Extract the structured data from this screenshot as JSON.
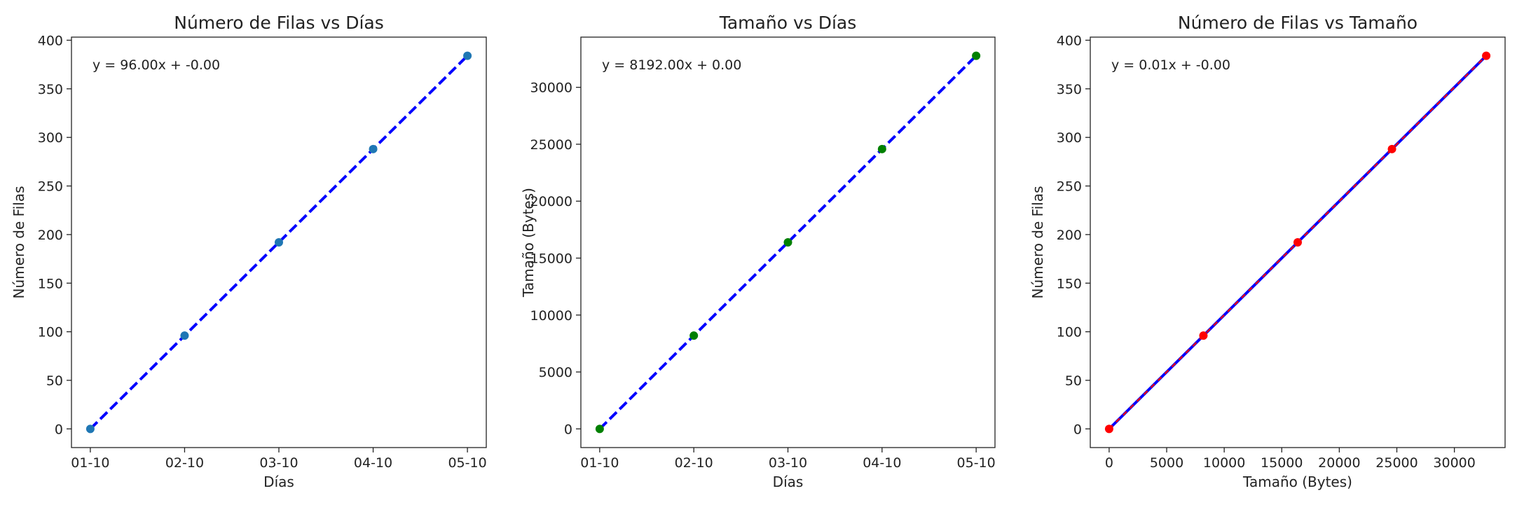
{
  "chart_data": [
    {
      "type": "line",
      "title": "Número de Filas vs Días",
      "xlabel": "Días",
      "ylabel": "Número de Filas",
      "categories": [
        "01-10",
        "02-10",
        "03-10",
        "04-10",
        "05-10"
      ],
      "x_ticks": [
        "01-10",
        "02-10",
        "03-10",
        "04-10",
        "05-10"
      ],
      "xlim": [
        -0.2,
        4.2
      ],
      "ylim": [
        -19.2,
        403.2
      ],
      "y_ticks": [
        0,
        50,
        100,
        150,
        200,
        250,
        300,
        350,
        400
      ],
      "grid": false,
      "series": [
        {
          "kind": "scatter",
          "values": [
            0,
            96,
            192,
            288,
            384
          ],
          "color": "#1f77b4"
        },
        {
          "kind": "fit-line",
          "values": [
            0,
            96,
            192,
            288,
            384
          ],
          "color": "#0000ff",
          "dash": "dashed"
        }
      ],
      "annotation": "y = 96.00x + -0.00"
    },
    {
      "type": "line",
      "title": "Tamaño vs Días",
      "xlabel": "Días",
      "ylabel": "Tamaño (Bytes)",
      "categories": [
        "01-10",
        "02-10",
        "03-10",
        "04-10",
        "05-10"
      ],
      "x_ticks": [
        "01-10",
        "02-10",
        "03-10",
        "04-10",
        "05-10"
      ],
      "xlim": [
        -0.2,
        4.2
      ],
      "ylim": [
        -1638.4,
        34406.4
      ],
      "y_ticks": [
        0,
        5000,
        10000,
        15000,
        20000,
        25000,
        30000
      ],
      "grid": false,
      "series": [
        {
          "kind": "scatter",
          "values": [
            0,
            8192,
            16384,
            24576,
            32768
          ],
          "color": "#008000"
        },
        {
          "kind": "fit-line",
          "values": [
            0,
            8192,
            16384,
            24576,
            32768
          ],
          "color": "#0000ff",
          "dash": "dashed"
        }
      ],
      "annotation": "y = 8192.00x + 0.00"
    },
    {
      "type": "line",
      "title": "Número de Filas vs Tamaño",
      "xlabel": "Tamaño (Bytes)",
      "ylabel": "Número de Filas",
      "x": [
        0,
        8192,
        16384,
        24576,
        32768
      ],
      "xlim": [
        -1638.4,
        34406.4
      ],
      "x_ticks": [
        0,
        5000,
        10000,
        15000,
        20000,
        25000,
        30000
      ],
      "ylim": [
        -19.2,
        403.2
      ],
      "y_ticks": [
        0,
        50,
        100,
        150,
        200,
        250,
        300,
        350,
        400
      ],
      "grid": false,
      "series": [
        {
          "kind": "scatter",
          "values": [
            0,
            96,
            192,
            288,
            384
          ],
          "color": "#ff0000"
        },
        {
          "kind": "fit-line",
          "values": [
            0,
            96,
            192,
            288,
            384
          ],
          "color": "#0000ff",
          "dash": "solid-with-red-dashes"
        }
      ],
      "annotation": "y = 0.01x + -0.00"
    }
  ],
  "colors": {
    "axes": "#222222",
    "fit_line": "#0000ff",
    "overlay_dash": "#ff0000"
  }
}
